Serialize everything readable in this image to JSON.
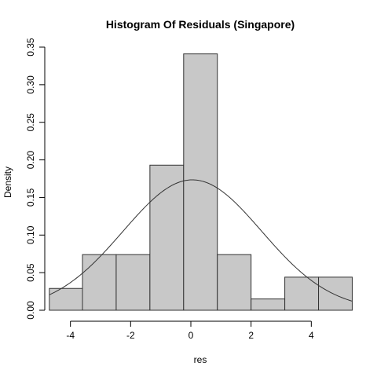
{
  "chart_data": {
    "type": "histogram",
    "title": "Histogram Of Residuals (Singapore)",
    "xlabel": "res",
    "ylabel": "Density",
    "xlim": [
      -4.8,
      5.4
    ],
    "ylim": [
      0,
      0.35
    ],
    "x_ticks": [
      -4,
      -2,
      0,
      2,
      4
    ],
    "y_ticks": [
      0.0,
      0.05,
      0.1,
      0.15,
      0.2,
      0.25,
      0.3,
      0.35
    ],
    "y_tick_labels": [
      "0.00",
      "0.05",
      "0.10",
      "0.15",
      "0.20",
      "0.25",
      "0.30",
      "0.35"
    ],
    "bins": [
      {
        "x0": -4.7,
        "x1": -3.6,
        "density": 0.029
      },
      {
        "x0": -3.6,
        "x1": -2.48,
        "density": 0.074
      },
      {
        "x0": -2.48,
        "x1": -1.36,
        "density": 0.074
      },
      {
        "x0": -1.36,
        "x1": -0.24,
        "density": 0.193
      },
      {
        "x0": -0.24,
        "x1": 0.88,
        "density": 0.341
      },
      {
        "x0": 0.88,
        "x1": 2.0,
        "density": 0.074
      },
      {
        "x0": 2.0,
        "x1": 3.12,
        "density": 0.015
      },
      {
        "x0": 3.12,
        "x1": 4.24,
        "density": 0.044
      },
      {
        "x0": 4.24,
        "x1": 5.36,
        "density": 0.044
      }
    ],
    "normal_curve": {
      "mean": 0.05,
      "sd": 2.3
    },
    "grid": false,
    "legend": "none",
    "bar_fill": "#c8c8c8",
    "bar_stroke": "#333333"
  }
}
